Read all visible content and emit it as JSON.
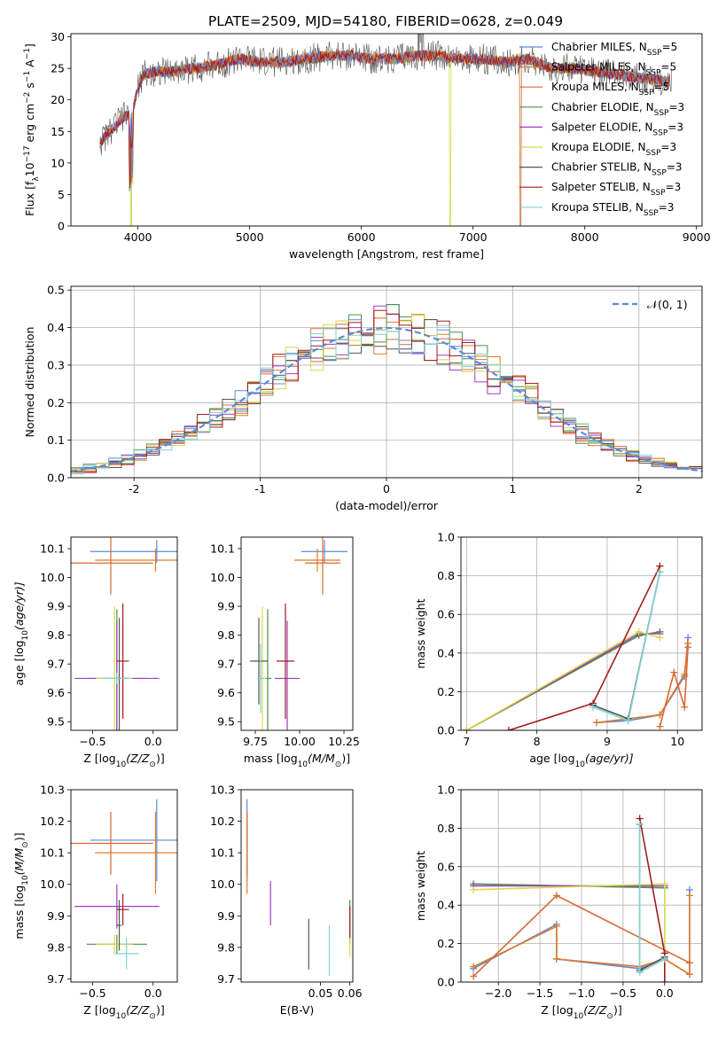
{
  "figure": {
    "title": "PLATE=2509, MJD=54180, FIBERID=0628, z=0.049",
    "colors": [
      "#5b8bd9",
      "#e07b2a",
      "#d76a33",
      "#4a8f4a",
      "#a13cc0",
      "#d8d84a",
      "#555555",
      "#a11d1d",
      "#7fd3d3"
    ]
  },
  "chart_data": [
    {
      "id": "spectrum",
      "type": "line",
      "xlabel": "wavelength [Angstrom, rest frame]",
      "ylabel": "Flux [f",
      "ylabel_sub": "λ",
      "ylabel_rest": "10",
      "ylabel_exp": "−17",
      "ylabel_units": " erg cm",
      "ylabel_units_exp": "−2",
      "ylabel_s": " s",
      "ylabel_s_exp": "−1",
      "ylabel_A": " A",
      "ylabel_A_exp": "−1",
      "ylabel_end": "]",
      "xlim": [
        3400,
        9050
      ],
      "ylim": [
        0,
        30.5
      ],
      "xticks": [
        4000,
        5000,
        6000,
        7000,
        8000,
        9000
      ],
      "yticks": [
        0,
        5,
        10,
        15,
        20,
        25,
        30
      ],
      "continuum": {
        "x": [
          3650,
          3750,
          3850,
          3950,
          4000,
          4050,
          4150,
          4300,
          4500,
          4700,
          4900,
          5100,
          5300,
          5500,
          5700,
          5900,
          6100,
          6300,
          6500,
          6700,
          6900,
          7100,
          7300,
          7500,
          7700,
          7900,
          8100,
          8300,
          8500,
          8700,
          8780
        ],
        "y": [
          13,
          15,
          17,
          18,
          22,
          24,
          24.5,
          24.5,
          25,
          25.5,
          26.5,
          26,
          26,
          26.5,
          27,
          27,
          26.5,
          26.5,
          27,
          27,
          26.5,
          26.5,
          26,
          26.5,
          25,
          25,
          24.5,
          24,
          23.5,
          23,
          23
        ]
      },
      "legend": [
        {
          "name": "Chabrier MILES, N",
          "sub": "SSP",
          "tail": "=5"
        },
        {
          "name": "Salpeter MILES, N",
          "sub": "SSP",
          "tail": "=5"
        },
        {
          "name": "Kroupa MILES, N",
          "sub": "SSP",
          "tail": "=5"
        },
        {
          "name": "Chabrier ELODIE, N",
          "sub": "SSP",
          "tail": "=3"
        },
        {
          "name": "Salpeter ELODIE, N",
          "sub": "SSP",
          "tail": "=3"
        },
        {
          "name": "Kroupa ELODIE, N",
          "sub": "SSP",
          "tail": "=3"
        },
        {
          "name": "Chabrier STELIB, N",
          "sub": "SSP",
          "tail": "=3"
        },
        {
          "name": "Salpeter STELIB, N",
          "sub": "SSP",
          "tail": "=3"
        },
        {
          "name": "Kroupa STELIB, N",
          "sub": "SSP",
          "tail": "=3"
        }
      ]
    },
    {
      "id": "residuals",
      "type": "step-histogram",
      "xlabel": "(data-model)/error",
      "ylabel": "Normed distribution",
      "xlim": [
        -2.5,
        2.5
      ],
      "ylim": [
        0,
        0.51
      ],
      "xticks": [
        -2,
        -1,
        0,
        1,
        2
      ],
      "yticks": [
        0.0,
        0.1,
        0.2,
        0.3,
        0.4,
        0.5
      ],
      "grid": true,
      "legend": "𝒩(0, 1)",
      "bin_width": 0.1
    },
    {
      "id": "age-vs-Z",
      "type": "errorbar",
      "xlabel": "Z [log",
      "xlabel_sub": "10",
      "xlabel_rest": "(Z/Z",
      "xlabel_sub2": "⊙",
      "xlabel_end": ")]",
      "ylabel": "age  [log",
      "ylabel_sub": "10",
      "ylabel_rest": "(age/yr)]",
      "xlim": [
        -0.68,
        0.2
      ],
      "ylim": [
        9.47,
        10.14
      ],
      "xticks": [
        -0.5,
        0.0
      ],
      "xticklabels": [
        "−0.5",
        "0.0"
      ],
      "yticks": [
        9.5,
        9.6,
        9.7,
        9.8,
        9.9,
        10.0,
        10.1
      ],
      "points": [
        {
          "x": 0.03,
          "y": 10.09,
          "xerr": 0.55,
          "yerr": 0.04,
          "c": 0
        },
        {
          "x": 0.02,
          "y": 10.06,
          "xerr": 0.5,
          "yerr": 0.04,
          "c": 1
        },
        {
          "x": -0.35,
          "y": 10.05,
          "xerr": 0.35,
          "yerr": 0.11,
          "c": 2
        },
        {
          "x": -0.3,
          "y": 9.65,
          "xerr": 0.25,
          "yerr": 0.24,
          "c": 3
        },
        {
          "x": -0.3,
          "y": 9.65,
          "xerr": 0.35,
          "yerr": 0.2,
          "c": 4
        },
        {
          "x": -0.32,
          "y": 9.65,
          "xerr": 0.15,
          "yerr": 0.25,
          "c": 5
        },
        {
          "x": -0.28,
          "y": 9.65,
          "xerr": 0.02,
          "yerr": 0.21,
          "c": 6
        },
        {
          "x": -0.25,
          "y": 9.71,
          "xerr": 0.05,
          "yerr": 0.2,
          "c": 7
        },
        {
          "x": -0.3,
          "y": 9.65,
          "xerr": 0.12,
          "yerr": 0.02,
          "c": 8
        }
      ]
    },
    {
      "id": "age-vs-mass",
      "type": "errorbar",
      "xlabel": "mass [log",
      "xlabel_sub": "10",
      "xlabel_rest": "(M/M",
      "xlabel_sub2": "⊙",
      "xlabel_end": ")]",
      "xlim": [
        9.67,
        10.3
      ],
      "ylim": [
        9.47,
        10.14
      ],
      "xticks": [
        9.75,
        10.0,
        10.25
      ],
      "xticklabels": [
        "9.75",
        "10.00",
        "10.25"
      ],
      "yticks": [
        9.5,
        9.6,
        9.7,
        9.8,
        9.9,
        10.0,
        10.1
      ],
      "points": [
        {
          "x": 10.14,
          "y": 10.09,
          "xerr": 0.13,
          "yerr": 0.04,
          "c": 0
        },
        {
          "x": 10.1,
          "y": 10.06,
          "xerr": 0.13,
          "yerr": 0.04,
          "c": 1
        },
        {
          "x": 10.13,
          "y": 10.05,
          "xerr": 0.1,
          "yerr": 0.11,
          "c": 2
        },
        {
          "x": 9.82,
          "y": 9.65,
          "xerr": 0.02,
          "yerr": 0.24,
          "c": 3
        },
        {
          "x": 9.93,
          "y": 9.65,
          "xerr": 0.07,
          "yerr": 0.2,
          "c": 4
        },
        {
          "x": 9.79,
          "y": 9.65,
          "xerr": 0.02,
          "yerr": 0.25,
          "c": 5
        },
        {
          "x": 9.77,
          "y": 9.71,
          "xerr": 0.05,
          "yerr": 0.15,
          "c": 6
        },
        {
          "x": 9.92,
          "y": 9.71,
          "xerr": 0.05,
          "yerr": 0.2,
          "c": 7
        },
        {
          "x": 9.78,
          "y": 9.65,
          "xerr": 0.02,
          "yerr": 0.12,
          "c": 8
        }
      ]
    },
    {
      "id": "weight-vs-age",
      "type": "line",
      "xlabel": "age  [log",
      "xlabel_sub": "10",
      "xlabel_rest": "(age/yr)]",
      "ylabel": "mass weight",
      "xlim": [
        6.92,
        10.35
      ],
      "ylim": [
        0,
        1.0
      ],
      "xticks": [
        7,
        8,
        9,
        10
      ],
      "yticks": [
        0.0,
        0.2,
        0.4,
        0.6,
        0.8,
        1.0
      ],
      "grid": true,
      "series": [
        {
          "c": 0,
          "x": [
            8.85,
            9.3,
            9.75,
            10.1,
            10.15
          ],
          "y": [
            0.04,
            0.05,
            0.08,
            0.28,
            0.48
          ]
        },
        {
          "c": 1,
          "x": [
            8.85,
            9.3,
            9.75,
            10.1,
            10.15
          ],
          "y": [
            0.04,
            0.06,
            0.08,
            0.29,
            0.45
          ]
        },
        {
          "c": 2,
          "x": [
            9.75,
            9.95,
            10.1,
            10.15
          ],
          "y": [
            0.02,
            0.3,
            0.12,
            0.43
          ]
        },
        {
          "c": 3,
          "x": [
            7.0,
            9.45,
            9.75
          ],
          "y": [
            0.0,
            0.49,
            0.51
          ]
        },
        {
          "c": 4,
          "x": [
            7.0,
            9.45,
            9.75
          ],
          "y": [
            0.0,
            0.5,
            0.5
          ]
        },
        {
          "c": 5,
          "x": [
            7.0,
            9.45,
            9.75
          ],
          "y": [
            0.0,
            0.51,
            0.48
          ]
        },
        {
          "c": 6,
          "x": [
            8.8,
            9.3,
            9.75
          ],
          "y": [
            0.13,
            0.06,
            0.82
          ]
        },
        {
          "c": 7,
          "x": [
            7.6,
            8.8,
            9.75
          ],
          "y": [
            0.0,
            0.14,
            0.85
          ]
        },
        {
          "c": 8,
          "x": [
            8.8,
            9.3,
            9.75
          ],
          "y": [
            0.12,
            0.05,
            0.82
          ]
        }
      ]
    },
    {
      "id": "mass-vs-Z",
      "type": "errorbar",
      "xlabel": "Z [log",
      "xlabel_sub": "10",
      "xlabel_rest": "(Z/Z",
      "xlabel_sub2": "⊙",
      "xlabel_end": ")]",
      "ylabel": "mass [log",
      "ylabel_sub": "10",
      "ylabel_rest": "(M/M",
      "ylabel_sub2": "⊙",
      "ylabel_end": ")]",
      "xlim": [
        -0.68,
        0.2
      ],
      "ylim": [
        9.69,
        10.3
      ],
      "xticks": [
        -0.5,
        0.0
      ],
      "xticklabels": [
        "−0.5",
        "0.0"
      ],
      "yticks": [
        9.7,
        9.8,
        9.9,
        10.0,
        10.1,
        10.2,
        10.3
      ],
      "points": [
        {
          "x": 0.03,
          "y": 10.14,
          "xerr": 0.55,
          "yerr": 0.13,
          "c": 0
        },
        {
          "x": 0.02,
          "y": 10.1,
          "xerr": 0.5,
          "yerr": 0.13,
          "c": 1
        },
        {
          "x": -0.35,
          "y": 10.13,
          "xerr": 0.35,
          "yerr": 0.1,
          "c": 2
        },
        {
          "x": -0.3,
          "y": 9.81,
          "xerr": 0.25,
          "yerr": 0.03,
          "c": 3
        },
        {
          "x": -0.3,
          "y": 9.93,
          "xerr": 0.35,
          "yerr": 0.07,
          "c": 4
        },
        {
          "x": -0.32,
          "y": 9.81,
          "xerr": 0.15,
          "yerr": 0.03,
          "c": 5
        },
        {
          "x": -0.28,
          "y": 9.87,
          "xerr": 0.02,
          "yerr": 0.08,
          "c": 6
        },
        {
          "x": -0.25,
          "y": 9.92,
          "xerr": 0.05,
          "yerr": 0.05,
          "c": 7
        },
        {
          "x": -0.22,
          "y": 9.78,
          "xerr": 0.1,
          "yerr": 0.05,
          "c": 8
        }
      ]
    },
    {
      "id": "mass-vs-EBV",
      "type": "errorbar",
      "xlabel": "E(B-V)",
      "xlim": [
        0.023,
        0.061
      ],
      "ylim": [
        9.69,
        10.3
      ],
      "xticks": [
        0.05,
        0.06
      ],
      "xticklabels": [
        "0.05",
        "0.06"
      ],
      "yticks": [
        9.7,
        9.8,
        9.9,
        10.0,
        10.1,
        10.2,
        10.3
      ],
      "points": [
        {
          "x": 0.025,
          "y": 10.14,
          "xerr": 0.0,
          "yerr": 0.13,
          "c": 0
        },
        {
          "x": 0.025,
          "y": 10.1,
          "xerr": 0.0,
          "yerr": 0.13,
          "c": 1
        },
        {
          "x": 0.025,
          "y": 10.13,
          "xerr": 0.0,
          "yerr": 0.1,
          "c": 2
        },
        {
          "x": 0.06,
          "y": 9.88,
          "xerr": 0.0,
          "yerr": 0.07,
          "c": 3
        },
        {
          "x": 0.033,
          "y": 9.94,
          "xerr": 0.0,
          "yerr": 0.07,
          "c": 4
        },
        {
          "x": 0.06,
          "y": 9.8,
          "xerr": 0.0,
          "yerr": 0.03,
          "c": 5
        },
        {
          "x": 0.046,
          "y": 9.81,
          "xerr": 0.0,
          "yerr": 0.08,
          "c": 6
        },
        {
          "x": 0.06,
          "y": 9.88,
          "xerr": 0.0,
          "yerr": 0.05,
          "c": 7
        },
        {
          "x": 0.053,
          "y": 9.79,
          "xerr": 0.0,
          "yerr": 0.08,
          "c": 8
        }
      ]
    },
    {
      "id": "weight-vs-Z",
      "type": "line",
      "xlabel": "Z [log",
      "xlabel_sub": "10",
      "xlabel_rest": "(Z/Z",
      "xlabel_sub2": "⊙",
      "xlabel_end": ")]",
      "ylabel": "mass weight",
      "xlim": [
        -2.45,
        0.45
      ],
      "ylim": [
        0,
        1.0
      ],
      "xticks": [
        -2.0,
        -1.5,
        -1.0,
        -0.5,
        0.0
      ],
      "xticklabels": [
        "−2.0",
        "−1.5",
        "−1.0",
        "−0.5",
        "0.0"
      ],
      "yticks": [
        0.0,
        0.2,
        0.4,
        0.6,
        0.8,
        1.0
      ],
      "grid": true,
      "series": [
        {
          "c": 0,
          "x": [
            -2.3,
            -1.3,
            -1.3,
            -0.3,
            0.0,
            0.3,
            0.3
          ],
          "y": [
            0.07,
            0.3,
            0.12,
            0.07,
            0.12,
            0.04,
            0.48
          ]
        },
        {
          "c": 1,
          "x": [
            -2.3,
            -1.3,
            -1.3,
            -0.3,
            0.0,
            0.3,
            0.3
          ],
          "y": [
            0.08,
            0.29,
            0.12,
            0.08,
            0.12,
            0.04,
            0.45
          ]
        },
        {
          "c": 2,
          "x": [
            -2.3,
            -1.3,
            0.3
          ],
          "y": [
            0.03,
            0.45,
            0.1
          ]
        },
        {
          "c": 3,
          "x": [
            -2.3,
            0.0
          ],
          "y": [
            0.51,
            0.49
          ]
        },
        {
          "c": 4,
          "x": [
            -2.3,
            0.0
          ],
          "y": [
            0.5,
            0.5
          ]
        },
        {
          "c": 5,
          "x": [
            -2.3,
            0.0,
            0.0
          ],
          "y": [
            0.48,
            0.51,
            0.0
          ]
        },
        {
          "c": 6,
          "x": [
            -0.3,
            -0.3,
            0.0
          ],
          "y": [
            0.82,
            0.06,
            0.13
          ]
        },
        {
          "c": 7,
          "x": [
            -0.3,
            0.0,
            0.0
          ],
          "y": [
            0.85,
            0.15,
            0.0
          ]
        },
        {
          "c": 8,
          "x": [
            -0.3,
            -0.3,
            0.0
          ],
          "y": [
            0.82,
            0.05,
            0.12
          ]
        }
      ]
    }
  ]
}
